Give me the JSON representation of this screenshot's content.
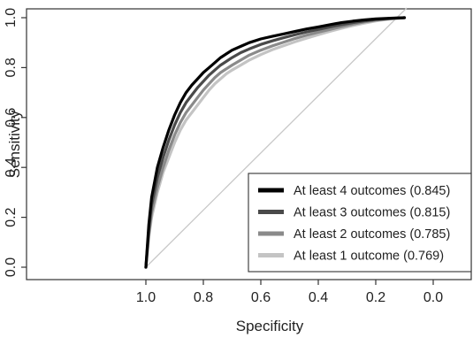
{
  "chart_data": {
    "type": "line",
    "title": "",
    "xlabel": "Specificity",
    "ylabel": "Sensitivity",
    "x_reversed": true,
    "xlim": [
      1.2,
      -0.2
    ],
    "ylim": [
      0.0,
      1.0
    ],
    "x_ticks": [
      "1.0",
      "0.8",
      "0.6",
      "0.4",
      "0.2",
      "0.0"
    ],
    "y_ticks": [
      "0.0",
      "0.2",
      "0.4",
      "0.6",
      "0.8",
      "1.0"
    ],
    "grid": false,
    "legend_position": "bottom-right",
    "reference_line": {
      "from": [
        1.0,
        0.0
      ],
      "to": [
        0.0,
        1.0
      ],
      "color": "#c8c8c8"
    },
    "series": [
      {
        "name": "At least 4 outcomes (0.845)",
        "color": "#000000",
        "specificity": [
          1.0,
          0.99,
          0.98,
          0.96,
          0.94,
          0.92,
          0.9,
          0.88,
          0.86,
          0.84,
          0.82,
          0.8,
          0.78,
          0.76,
          0.74,
          0.72,
          0.7,
          0.67,
          0.64,
          0.6,
          0.56,
          0.52,
          0.48,
          0.44,
          0.4,
          0.36,
          0.32,
          0.28,
          0.24,
          0.2,
          0.15,
          0.1
        ],
        "sensitivity": [
          0.0,
          0.17,
          0.28,
          0.4,
          0.48,
          0.55,
          0.61,
          0.66,
          0.7,
          0.73,
          0.755,
          0.78,
          0.8,
          0.82,
          0.84,
          0.855,
          0.87,
          0.885,
          0.9,
          0.915,
          0.925,
          0.935,
          0.945,
          0.955,
          0.963,
          0.972,
          0.98,
          0.986,
          0.991,
          0.995,
          0.998,
          1.0
        ]
      },
      {
        "name": "At least 3 outcomes (0.815)",
        "color": "#4a4a4a",
        "specificity": [
          1.0,
          0.99,
          0.98,
          0.96,
          0.94,
          0.92,
          0.9,
          0.88,
          0.86,
          0.84,
          0.82,
          0.8,
          0.78,
          0.76,
          0.74,
          0.72,
          0.7,
          0.67,
          0.64,
          0.6,
          0.56,
          0.52,
          0.48,
          0.44,
          0.4,
          0.36,
          0.32,
          0.28,
          0.24,
          0.2,
          0.15,
          0.1
        ],
        "sensitivity": [
          0.0,
          0.15,
          0.25,
          0.36,
          0.44,
          0.51,
          0.57,
          0.62,
          0.66,
          0.69,
          0.72,
          0.745,
          0.77,
          0.79,
          0.81,
          0.825,
          0.84,
          0.86,
          0.875,
          0.893,
          0.907,
          0.92,
          0.932,
          0.943,
          0.953,
          0.963,
          0.972,
          0.98,
          0.987,
          0.993,
          0.997,
          1.0
        ]
      },
      {
        "name": "At least 2 outcomes (0.785)",
        "color": "#8a8a8a",
        "specificity": [
          1.0,
          0.99,
          0.98,
          0.96,
          0.94,
          0.92,
          0.9,
          0.88,
          0.86,
          0.84,
          0.82,
          0.8,
          0.78,
          0.76,
          0.74,
          0.72,
          0.7,
          0.67,
          0.64,
          0.6,
          0.56,
          0.52,
          0.48,
          0.44,
          0.4,
          0.36,
          0.32,
          0.28,
          0.24,
          0.2,
          0.15,
          0.1
        ],
        "sensitivity": [
          0.0,
          0.13,
          0.22,
          0.32,
          0.4,
          0.47,
          0.53,
          0.58,
          0.62,
          0.65,
          0.68,
          0.71,
          0.735,
          0.76,
          0.78,
          0.795,
          0.81,
          0.83,
          0.85,
          0.87,
          0.887,
          0.902,
          0.917,
          0.93,
          0.942,
          0.953,
          0.964,
          0.974,
          0.983,
          0.99,
          0.996,
          1.0
        ]
      },
      {
        "name": "At least 1 outcome (0.769)",
        "color": "#c4c4c4",
        "specificity": [
          1.0,
          0.99,
          0.98,
          0.96,
          0.94,
          0.92,
          0.9,
          0.88,
          0.86,
          0.84,
          0.82,
          0.8,
          0.78,
          0.76,
          0.74,
          0.72,
          0.7,
          0.67,
          0.64,
          0.6,
          0.56,
          0.52,
          0.48,
          0.44,
          0.4,
          0.36,
          0.32,
          0.28,
          0.24,
          0.2,
          0.15,
          0.1
        ],
        "sensitivity": [
          0.0,
          0.12,
          0.2,
          0.3,
          0.38,
          0.44,
          0.5,
          0.55,
          0.59,
          0.62,
          0.65,
          0.68,
          0.71,
          0.735,
          0.755,
          0.775,
          0.79,
          0.81,
          0.83,
          0.852,
          0.872,
          0.888,
          0.904,
          0.918,
          0.932,
          0.945,
          0.957,
          0.968,
          0.978,
          0.987,
          0.995,
          1.0
        ]
      }
    ]
  }
}
